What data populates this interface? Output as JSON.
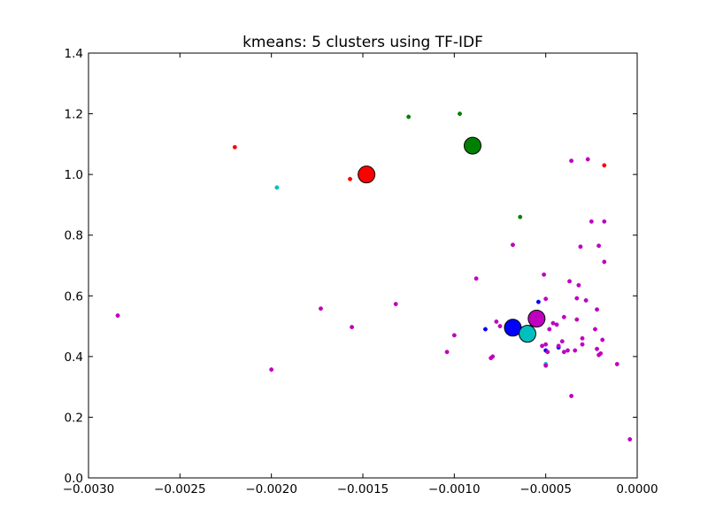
{
  "chart_data": {
    "type": "scatter",
    "title": "kmeans: 5 clusters using TF-IDF",
    "xlabel": "",
    "ylabel": "",
    "xlim": [
      -0.003,
      0.0
    ],
    "ylim": [
      0.0,
      1.4
    ],
    "x_ticks": [
      -0.003,
      -0.0025,
      -0.002,
      -0.0015,
      -0.001,
      -0.0005,
      0.0
    ],
    "x_tick_labels": [
      "−0.0030",
      "−0.0025",
      "−0.0020",
      "−0.0015",
      "−0.0010",
      "−0.0005",
      "0.0000"
    ],
    "y_ticks": [
      0.0,
      0.2,
      0.4,
      0.6,
      0.8,
      1.0,
      1.2,
      1.4
    ],
    "y_tick_labels": [
      "0.0",
      "0.2",
      "0.4",
      "0.6",
      "0.8",
      "1.0",
      "1.2",
      "1.4"
    ],
    "grid": false,
    "legend": "none",
    "series": [
      {
        "color": "#ff0000",
        "points": [
          [
            -0.0022,
            1.09
          ],
          [
            -0.00157,
            0.985
          ],
          [
            -0.00018,
            1.03
          ]
        ],
        "centroid": [
          -0.00148,
          1.0
        ]
      },
      {
        "color": "#008000",
        "points": [
          [
            -0.00125,
            1.19
          ],
          [
            -0.00097,
            1.2
          ],
          [
            -0.00064,
            0.86
          ]
        ],
        "centroid": [
          -0.0009,
          1.095
        ]
      },
      {
        "color": "#0000ff",
        "points": [
          [
            -0.00083,
            0.49
          ],
          [
            -0.00054,
            0.58
          ],
          [
            -0.00043,
            0.43
          ],
          [
            -0.00068,
            0.49
          ],
          [
            -0.0005,
            0.42
          ]
        ],
        "centroid": [
          -0.00068,
          0.495
        ]
      },
      {
        "color": "#00bfbf",
        "points": [
          [
            -0.00197,
            0.957
          ],
          [
            -0.0005,
            0.375
          ],
          [
            -0.00063,
            0.49
          ]
        ],
        "centroid": [
          -0.0006,
          0.475
        ]
      },
      {
        "color": "#bf00bf",
        "points": [
          [
            -0.00284,
            0.535
          ],
          [
            -0.002,
            0.357
          ],
          [
            -0.00173,
            0.558
          ],
          [
            -0.00156,
            0.497
          ],
          [
            -0.00132,
            0.573
          ],
          [
            -0.00104,
            0.415
          ],
          [
            -0.001,
            0.47
          ],
          [
            -0.00088,
            0.657
          ],
          [
            -0.0008,
            0.395
          ],
          [
            -0.00079,
            0.4
          ],
          [
            -0.00077,
            0.515
          ],
          [
            -0.00075,
            0.5
          ],
          [
            -0.00068,
            0.768
          ],
          [
            -0.00062,
            0.46
          ],
          [
            -0.0006,
            0.49
          ],
          [
            -0.00058,
            0.5
          ],
          [
            -0.00055,
            0.54
          ],
          [
            -0.00052,
            0.435
          ],
          [
            -0.00051,
            0.67
          ],
          [
            -0.0005,
            0.59
          ],
          [
            -0.0005,
            0.44
          ],
          [
            -0.00049,
            0.415
          ],
          [
            -0.00048,
            0.49
          ],
          [
            -0.00046,
            0.51
          ],
          [
            -0.00044,
            0.505
          ],
          [
            -0.00043,
            0.435
          ],
          [
            -0.00041,
            0.45
          ],
          [
            -0.0004,
            0.53
          ],
          [
            -0.0004,
            0.415
          ],
          [
            -0.00038,
            0.42
          ],
          [
            -0.00037,
            0.648
          ],
          [
            -0.00036,
            0.27
          ],
          [
            -0.00036,
            1.045
          ],
          [
            -0.00034,
            0.42
          ],
          [
            -0.00033,
            0.592
          ],
          [
            -0.00033,
            0.522
          ],
          [
            -0.00032,
            0.635
          ],
          [
            -0.00031,
            0.762
          ],
          [
            -0.0003,
            0.46
          ],
          [
            -0.0003,
            0.44
          ],
          [
            -0.00028,
            0.585
          ],
          [
            -0.00027,
            1.05
          ],
          [
            -0.00025,
            0.845
          ],
          [
            -0.00023,
            0.49
          ],
          [
            -0.00022,
            0.555
          ],
          [
            -0.00022,
            0.425
          ],
          [
            -0.00021,
            0.765
          ],
          [
            -0.00021,
            0.405
          ],
          [
            -0.0002,
            0.41
          ],
          [
            -0.00019,
            0.455
          ],
          [
            -0.00018,
            0.845
          ],
          [
            -0.00018,
            0.712
          ],
          [
            -0.00011,
            0.375
          ],
          [
            -4e-05,
            0.127
          ],
          [
            -0.0005,
            0.37
          ]
        ],
        "centroid": [
          -0.00055,
          0.525
        ]
      }
    ]
  }
}
